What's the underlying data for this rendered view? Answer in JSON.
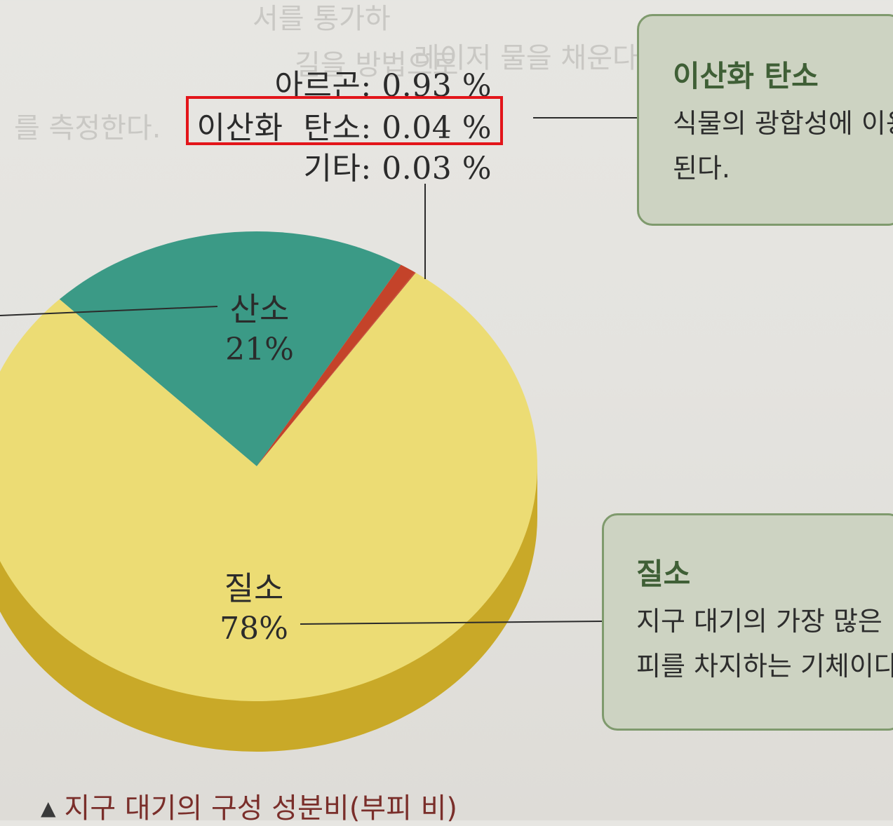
{
  "chart_data": {
    "type": "pie",
    "slices": [
      {
        "label": "질소",
        "value": 78,
        "value_label": "78%",
        "color": "#ecdc74"
      },
      {
        "label": "산소",
        "value": 21,
        "value_label": "21%",
        "color": "#3b9a86"
      },
      {
        "label": "아르곤",
        "value": 0.93,
        "value_label": "0.93 %",
        "color": "#c4432a"
      },
      {
        "label": "이산화  탄소",
        "value": 0.04,
        "value_label": "0.04 %",
        "color": "#c4432a"
      },
      {
        "label": "기타",
        "value": 0.03,
        "value_label": "0.03 %",
        "color": "#c4432a"
      }
    ],
    "title": "지구 대기의 구성 성분비(부피 비)"
  },
  "labels": {
    "argon": {
      "name": "아르곤",
      "value": ": 0.93 %"
    },
    "co2": {
      "name": "이산화  탄소",
      "value": ": 0.04 %"
    },
    "other": {
      "name": "기타",
      "value": ": 0.03 %"
    },
    "oxygen": {
      "name": "산소",
      "value": "21%"
    },
    "nitrogen": {
      "name": "질소",
      "value": "78%"
    }
  },
  "callouts": {
    "co2": {
      "title": "이산화 탄소",
      "line1": "식물의 광합성에 이용",
      "line2": "된다."
    },
    "nitrogen": {
      "title": "질소",
      "line1": "지구 대기의 가장 많은",
      "line2": "피를 차지하는 기체이다"
    }
  },
  "caption": {
    "marker": "▲",
    "text": "지구 대기의 구성 성분비(부피 비)"
  }
}
